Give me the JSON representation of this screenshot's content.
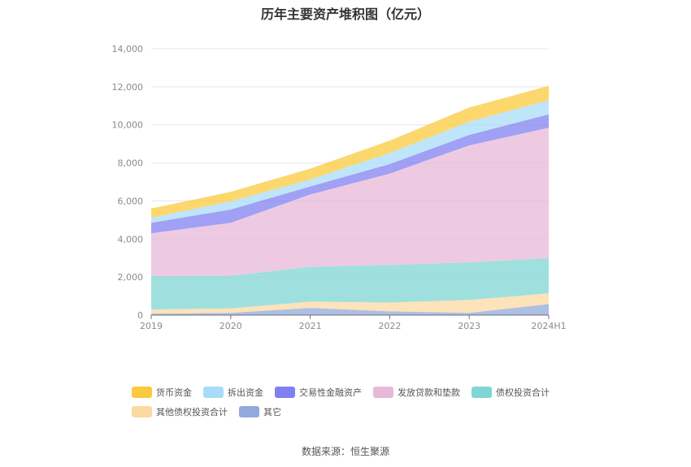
{
  "chart_data": {
    "type": "area",
    "stacked": true,
    "title": "历年主要资产堆积图（亿元）",
    "categories": [
      "2019",
      "2020",
      "2021",
      "2022",
      "2023",
      "2024H1"
    ],
    "y_ticks": [
      "0",
      "2,000",
      "4,000",
      "6,000",
      "8,000",
      "10,000",
      "12,000",
      "14,000"
    ],
    "ylim": [
      0,
      14000
    ],
    "series": [
      {
        "name": "其它",
        "color": "#91aadb",
        "values": [
          80,
          120,
          380,
          200,
          120,
          580
        ]
      },
      {
        "name": "其他债权投资合计",
        "color": "#fcd9a1",
        "values": [
          220,
          230,
          330,
          460,
          680,
          560
        ]
      },
      {
        "name": "债权投资合计",
        "color": "#7fd6d4",
        "values": [
          1750,
          1720,
          1830,
          1980,
          1970,
          1860
        ]
      },
      {
        "name": "发放贷款和垫款",
        "color": "#e8b8d8",
        "values": [
          2250,
          2780,
          3800,
          4800,
          6150,
          6850
        ]
      },
      {
        "name": "交易性金融资产",
        "color": "#8080f0",
        "values": [
          550,
          700,
          420,
          500,
          550,
          700
        ]
      },
      {
        "name": "拆出资金",
        "color": "#a8dcf8",
        "values": [
          260,
          430,
          370,
          580,
          700,
          740
        ]
      },
      {
        "name": "货币资金",
        "color": "#fbc93d",
        "values": [
          490,
          500,
          570,
          650,
          740,
          760
        ]
      }
    ],
    "legend_order": [
      "货币资金",
      "拆出资金",
      "交易性金融资产",
      "发放贷款和垫款",
      "债权投资合计",
      "其他债权投资合计",
      "其它"
    ],
    "legend_position": "bottom"
  },
  "footer": {
    "source": "数据来源：恒生聚源"
  }
}
